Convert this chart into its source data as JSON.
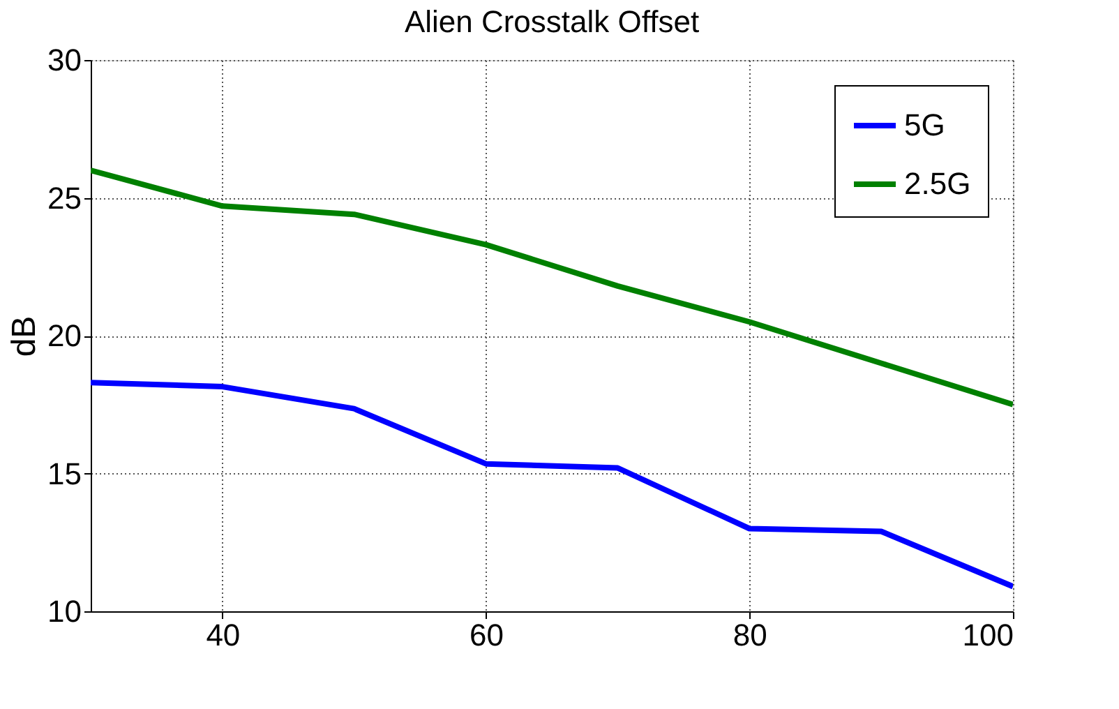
{
  "chart_data": {
    "type": "line",
    "title": "Alien Crosstalk Offset",
    "ylabel": "dB",
    "x": [
      30,
      40,
      50,
      60,
      70,
      80,
      90,
      100
    ],
    "series": [
      {
        "name": "5G",
        "color": "#0000ff",
        "values": [
          18.3,
          18.15,
          17.35,
          15.35,
          15.2,
          13.0,
          12.9,
          10.9
        ]
      },
      {
        "name": "2.5G",
        "color": "#008000",
        "values": [
          26.0,
          24.7,
          24.4,
          23.3,
          21.8,
          20.5,
          19.0,
          17.5
        ]
      }
    ],
    "xlim": [
      30,
      100
    ],
    "xticks": [
      40,
      60,
      80,
      100
    ],
    "ylim": [
      10,
      30
    ],
    "yticks": [
      10,
      15,
      20,
      25,
      30
    ],
    "grid": true,
    "legend": "top right",
    "marker": "none",
    "line_style": "solid"
  }
}
